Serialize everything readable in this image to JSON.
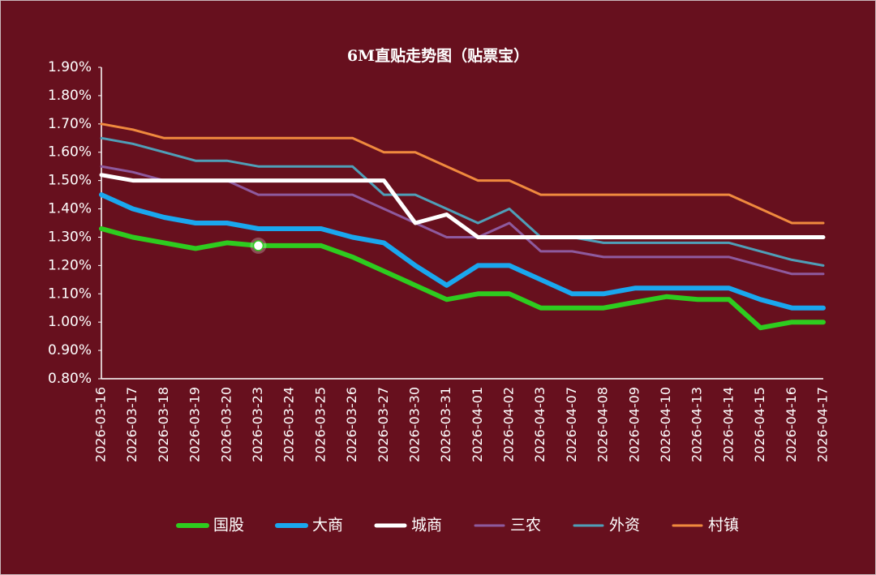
{
  "chart_data": {
    "type": "line",
    "title": "6M直贴走势图（贴票宝）",
    "categories": [
      "2026-03-16",
      "2026-03-17",
      "2026-03-18",
      "2026-03-19",
      "2026-03-20",
      "2026-03-23",
      "2026-03-24",
      "2026-03-25",
      "2026-03-26",
      "2026-03-27",
      "2026-03-30",
      "2026-03-31",
      "2026-04-01",
      "2026-04-02",
      "2026-04-03",
      "2026-04-07",
      "2026-04-08",
      "2026-04-09",
      "2026-04-10",
      "2026-04-13",
      "2026-04-14",
      "2026-04-15",
      "2026-04-16",
      "2026-04-17"
    ],
    "series": [
      {
        "name": "国股",
        "color": "#2ecc1f",
        "values": [
          1.33,
          1.3,
          1.28,
          1.26,
          1.28,
          1.27,
          1.27,
          1.27,
          1.23,
          1.18,
          1.13,
          1.08,
          1.1,
          1.1,
          1.05,
          1.05,
          1.05,
          1.07,
          1.09,
          1.08,
          1.08,
          0.98,
          1.0,
          1.0
        ]
      },
      {
        "name": "大商",
        "color": "#1aa7ee",
        "values": [
          1.45,
          1.4,
          1.37,
          1.35,
          1.35,
          1.33,
          1.33,
          1.33,
          1.3,
          1.28,
          1.2,
          1.13,
          1.2,
          1.2,
          1.15,
          1.1,
          1.1,
          1.12,
          1.12,
          1.12,
          1.12,
          1.08,
          1.05,
          1.05
        ]
      },
      {
        "name": "城商",
        "color": "#ffffff",
        "values": [
          1.52,
          1.5,
          1.5,
          1.5,
          1.5,
          1.5,
          1.5,
          1.5,
          1.5,
          1.5,
          1.35,
          1.38,
          1.3,
          1.3,
          1.3,
          1.3,
          1.3,
          1.3,
          1.3,
          1.3,
          1.3,
          1.3,
          1.3,
          1.3
        ]
      },
      {
        "name": "三农",
        "color": "#8e5a9e",
        "values": [
          1.55,
          1.53,
          1.5,
          1.5,
          1.5,
          1.45,
          1.45,
          1.45,
          1.45,
          1.4,
          1.35,
          1.3,
          1.3,
          1.35,
          1.25,
          1.25,
          1.23,
          1.23,
          1.23,
          1.23,
          1.23,
          1.2,
          1.17,
          1.17
        ]
      },
      {
        "name": "外资",
        "color": "#4f9fb8",
        "values": [
          1.65,
          1.63,
          1.6,
          1.57,
          1.57,
          1.55,
          1.55,
          1.55,
          1.55,
          1.45,
          1.45,
          1.4,
          1.35,
          1.4,
          1.3,
          1.3,
          1.28,
          1.28,
          1.28,
          1.28,
          1.28,
          1.25,
          1.22,
          1.2
        ]
      },
      {
        "name": "村镇",
        "color": "#f08a3e",
        "values": [
          1.7,
          1.68,
          1.65,
          1.65,
          1.65,
          1.65,
          1.65,
          1.65,
          1.65,
          1.6,
          1.6,
          1.55,
          1.5,
          1.5,
          1.45,
          1.45,
          1.45,
          1.45,
          1.45,
          1.45,
          1.45,
          1.4,
          1.35,
          1.35
        ]
      }
    ],
    "ylim": [
      0.8,
      1.9
    ],
    "yticks": [
      {
        "value": 0.8,
        "label": "0.80%"
      },
      {
        "value": 0.9,
        "label": "0.90%"
      },
      {
        "value": 1.0,
        "label": "1.00%"
      },
      {
        "value": 1.1,
        "label": "1.10%"
      },
      {
        "value": 1.2,
        "label": "1.20%"
      },
      {
        "value": 1.3,
        "label": "1.30%"
      },
      {
        "value": 1.4,
        "label": "1.40%"
      },
      {
        "value": 1.5,
        "label": "1.50%"
      },
      {
        "value": 1.6,
        "label": "1.60%"
      },
      {
        "value": 1.7,
        "label": "1.70%"
      },
      {
        "value": 1.8,
        "label": "1.80%"
      },
      {
        "value": 1.9,
        "label": "1.90%"
      }
    ],
    "grid": false,
    "legend": "bottom"
  }
}
